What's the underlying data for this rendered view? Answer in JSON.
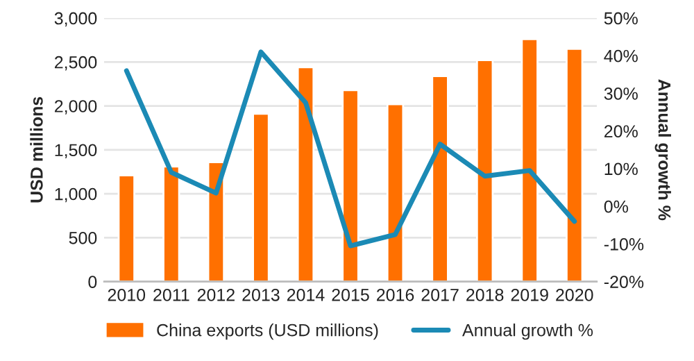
{
  "chart_data": {
    "type": "bar",
    "ylabel": "USD millions",
    "y2label": "Annual growth %",
    "categories": [
      "2010",
      "2011",
      "2012",
      "2013",
      "2014",
      "2015",
      "2016",
      "2017",
      "2018",
      "2019",
      "2020"
    ],
    "series": [
      {
        "name": "China exports (USD millions)",
        "color": "#ff7000",
        "values": [
          1210,
          1310,
          1360,
          1910,
          2440,
          2180,
          2020,
          2340,
          2520,
          2760,
          2650
        ]
      },
      {
        "name": "Annual growth %",
        "type": "line",
        "axis": "y2",
        "color": "#1b8ab5",
        "values": [
          36,
          9,
          3.5,
          41,
          27.5,
          -10.5,
          -7.5,
          16.5,
          8,
          9.5,
          -4
        ]
      }
    ],
    "ylim": [
      0,
      3000
    ],
    "yticks": [
      {
        "value": 0,
        "label": "0"
      },
      {
        "value": 500,
        "label": "500"
      },
      {
        "value": 1000,
        "label": "1,000"
      },
      {
        "value": 1500,
        "label": "1,500"
      },
      {
        "value": 2000,
        "label": "2,000"
      },
      {
        "value": 2500,
        "label": "2,500"
      },
      {
        "value": 3000,
        "label": "3,000"
      }
    ],
    "y2lim": [
      -20,
      50
    ],
    "y2ticks": [
      {
        "value": -20,
        "label": "-20%"
      },
      {
        "value": -10,
        "label": "-10%"
      },
      {
        "value": 0,
        "label": "0%"
      },
      {
        "value": 10,
        "label": "10%"
      },
      {
        "value": 20,
        "label": "20%"
      },
      {
        "value": 30,
        "label": "30%"
      },
      {
        "value": 40,
        "label": "40%"
      },
      {
        "value": 50,
        "label": "50%"
      }
    ],
    "grid": "y",
    "legend": "bottom",
    "marker": "none",
    "line_style": "solid"
  }
}
